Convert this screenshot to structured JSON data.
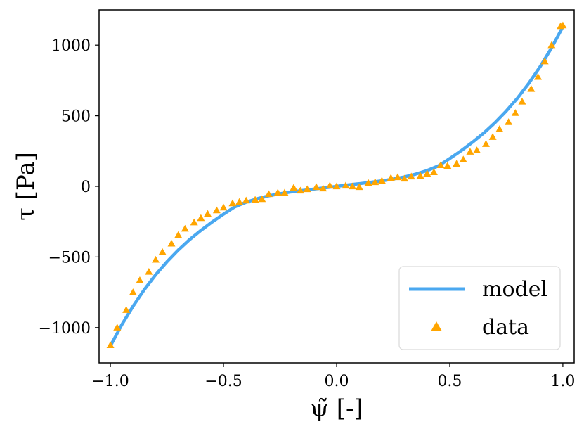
{
  "chart_data": {
    "type": "scatter",
    "title": "",
    "xlabel": "ψ̃ [-]",
    "ylabel": "τ [Pa]",
    "xlim": [
      -1.05,
      1.05
    ],
    "ylim": [
      -1250,
      1250
    ],
    "x_ticks": [
      -1.0,
      -0.5,
      0.0,
      0.5,
      1.0
    ],
    "x_tick_labels": [
      "−1.0",
      "−0.5",
      "0.0",
      "0.5",
      "1.0"
    ],
    "y_ticks": [
      -1000,
      -500,
      0,
      500,
      1000
    ],
    "y_tick_labels": [
      "−1000",
      "−500",
      "0",
      "500",
      "1000"
    ],
    "grid": false,
    "legend_position": "lower-right",
    "series": [
      {
        "name": "model",
        "kind": "line",
        "color": "#4aa8f0",
        "x": [
          -1.0,
          -0.95,
          -0.9,
          -0.85,
          -0.8,
          -0.75,
          -0.7,
          -0.65,
          -0.6,
          -0.55,
          -0.5,
          -0.45,
          -0.4,
          -0.35,
          -0.3,
          -0.25,
          -0.2,
          -0.15,
          -0.1,
          -0.05,
          0.0,
          0.05,
          0.1,
          0.15,
          0.2,
          0.25,
          0.3,
          0.35,
          0.4,
          0.45,
          0.5,
          0.55,
          0.6,
          0.65,
          0.7,
          0.75,
          0.8,
          0.85,
          0.9,
          0.95,
          1.0
        ],
        "y": [
          -1130,
          -981,
          -849,
          -731,
          -626,
          -534,
          -451,
          -377,
          -312,
          -252,
          -197,
          -145,
          -112,
          -87,
          -67,
          -52,
          -39,
          -29,
          -19,
          -10,
          0,
          10,
          19,
          29,
          39,
          52,
          67,
          87,
          112,
          145,
          197,
          252,
          312,
          377,
          451,
          534,
          626,
          731,
          849,
          981,
          1130
        ]
      },
      {
        "name": "data",
        "kind": "scatter",
        "marker": "triangle",
        "color": "#ffa500",
        "x": [
          -1.0,
          -0.97,
          -0.93,
          -0.9,
          -0.87,
          -0.83,
          -0.8,
          -0.77,
          -0.73,
          -0.7,
          -0.67,
          -0.63,
          -0.6,
          -0.57,
          -0.53,
          -0.5,
          -0.46,
          -0.43,
          -0.4,
          -0.36,
          -0.33,
          -0.3,
          -0.26,
          -0.23,
          -0.19,
          -0.16,
          -0.13,
          -0.09,
          -0.06,
          -0.03,
          0.0,
          0.04,
          0.07,
          0.1,
          0.14,
          0.17,
          0.2,
          0.24,
          0.27,
          0.3,
          0.33,
          0.37,
          0.4,
          0.43,
          0.46,
          0.49,
          0.53,
          0.56,
          0.59,
          0.62,
          0.66,
          0.69,
          0.72,
          0.76,
          0.79,
          0.82,
          0.86,
          0.89,
          0.92,
          0.95,
          0.99,
          1.0
        ],
        "y": [
          -1125,
          -1000,
          -875,
          -750,
          -665,
          -605,
          -520,
          -465,
          -405,
          -345,
          -300,
          -255,
          -225,
          -195,
          -170,
          -150,
          -120,
          -110,
          -100,
          -95,
          -90,
          -55,
          -45,
          -45,
          -10,
          -30,
          -20,
          -5,
          -15,
          5,
          0,
          5,
          0,
          -5,
          25,
          30,
          40,
          60,
          65,
          55,
          70,
          75,
          90,
          100,
          150,
          145,
          160,
          190,
          245,
          255,
          300,
          350,
          405,
          455,
          520,
          600,
          690,
          775,
          885,
          1000,
          1135,
          1140
        ]
      }
    ]
  }
}
